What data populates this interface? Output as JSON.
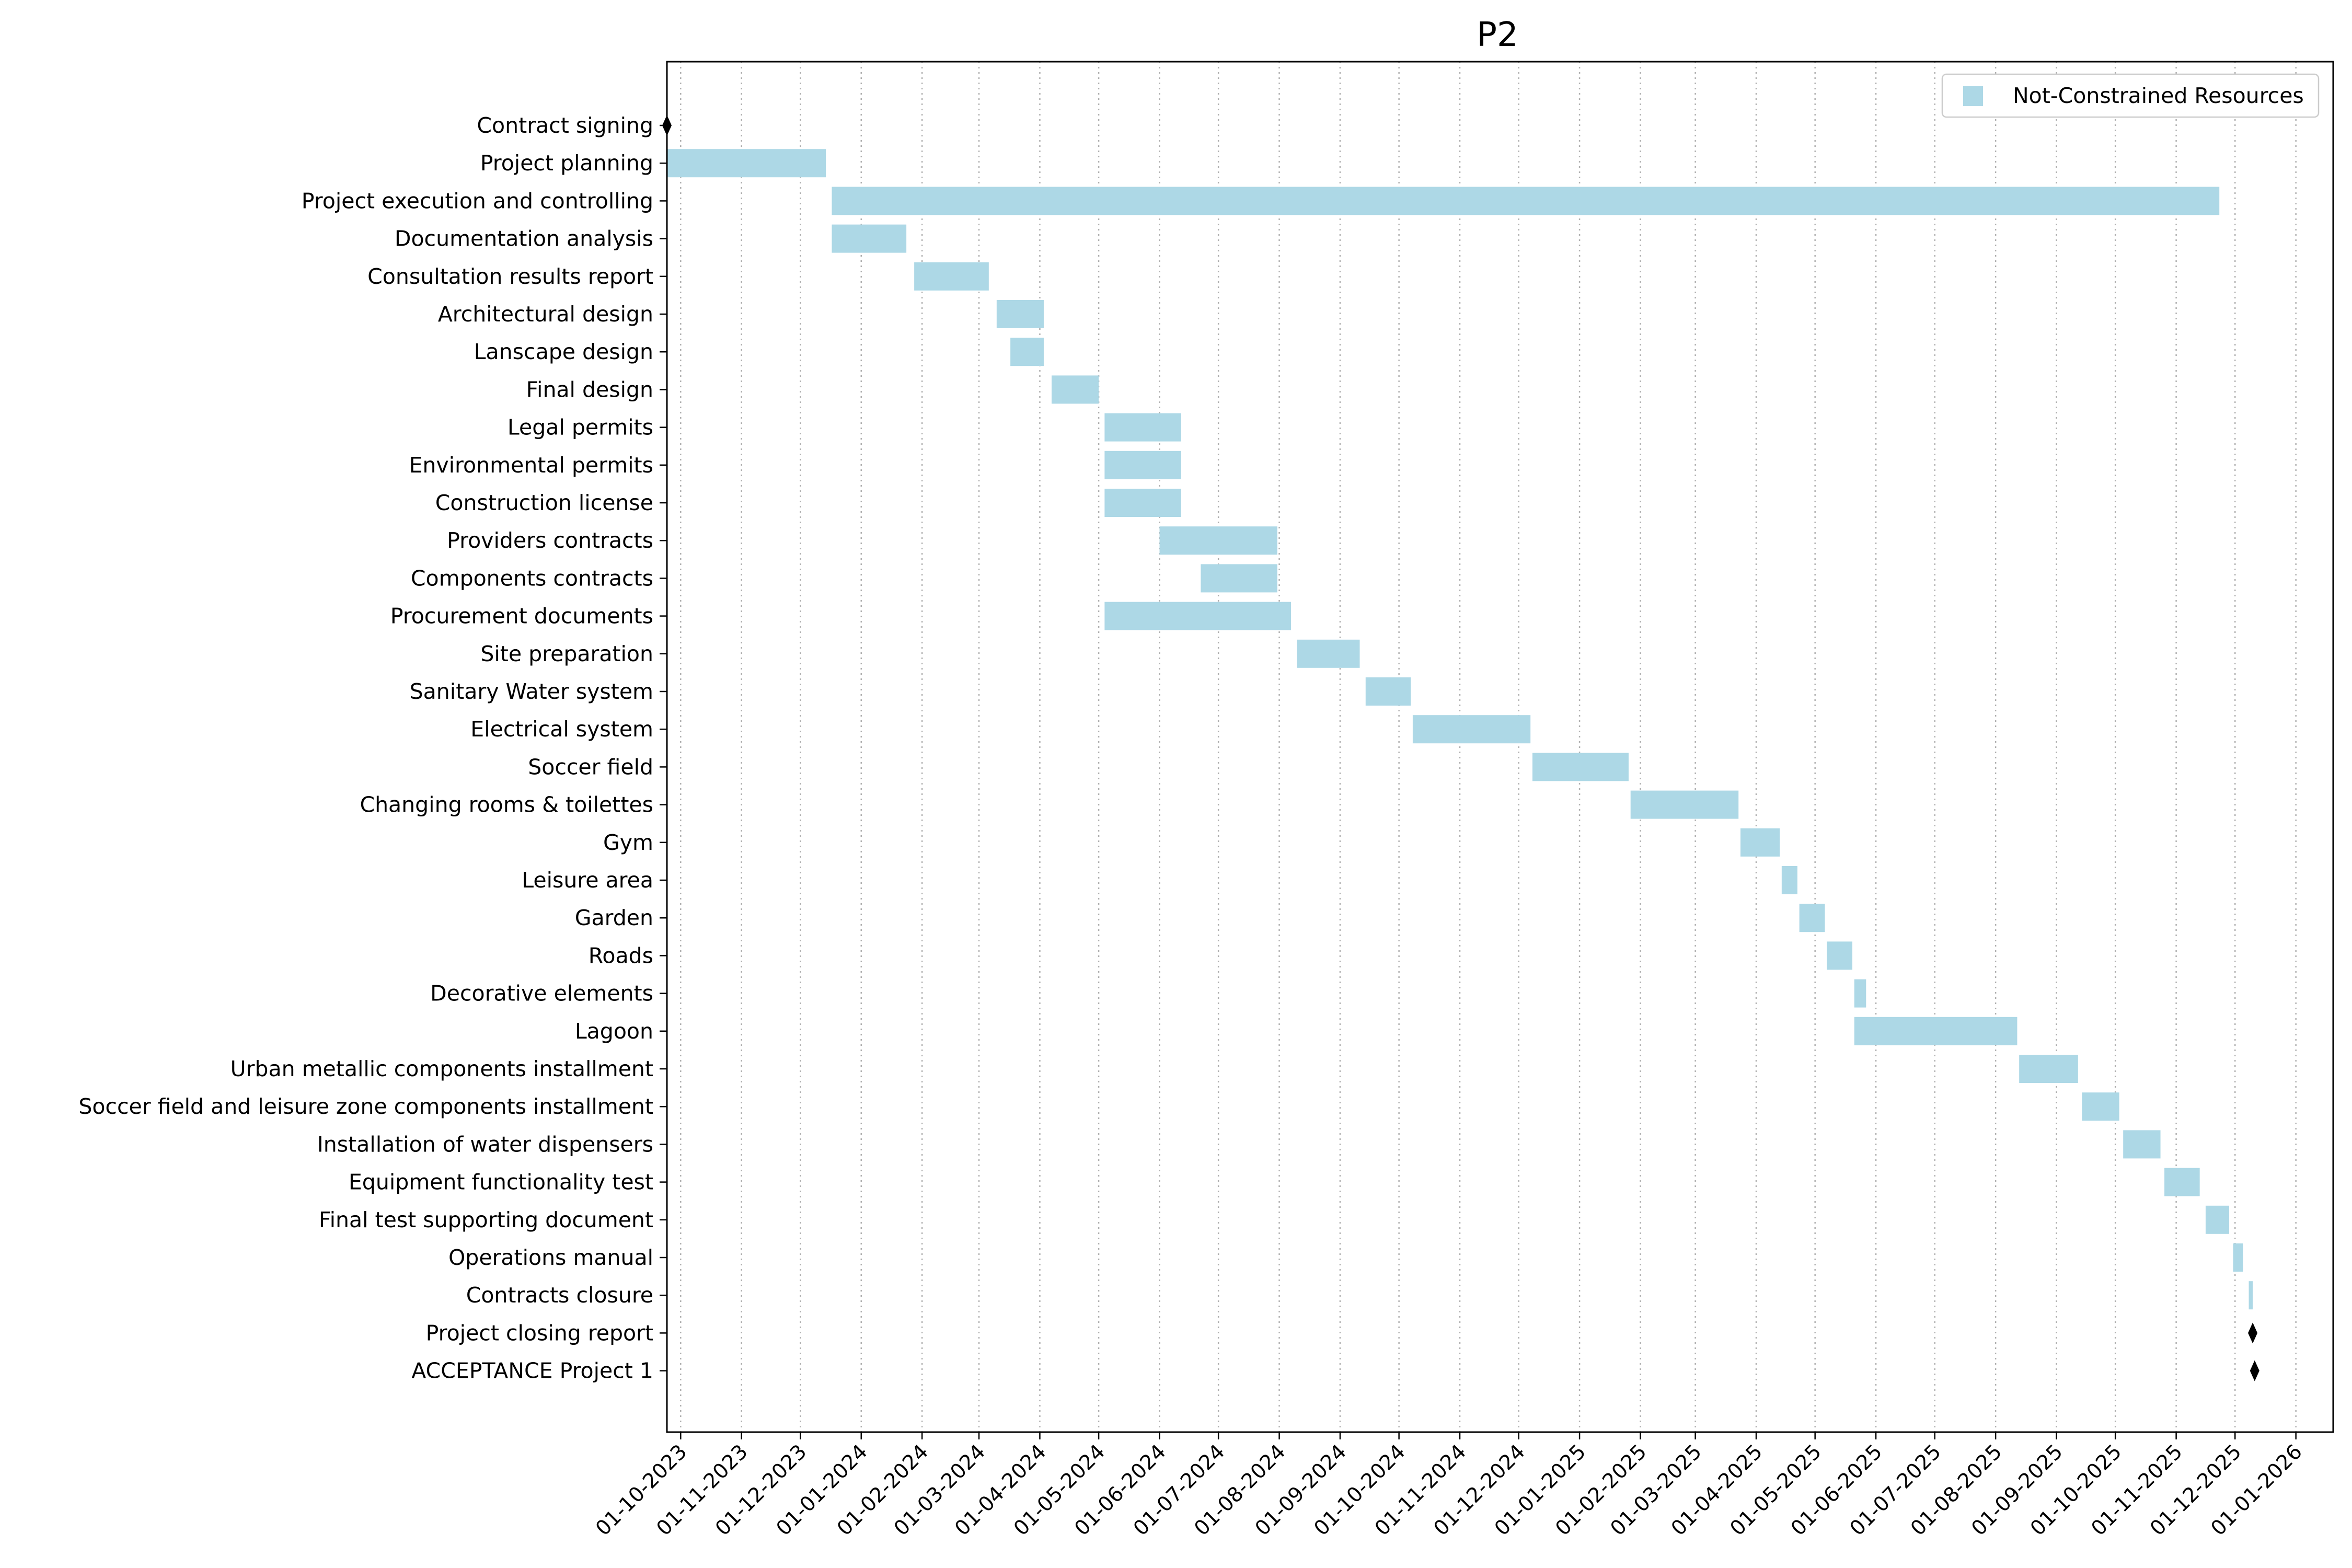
{
  "chart_data": {
    "type": "gantt",
    "title": "P2",
    "xlabel": "",
    "ylabel": "",
    "x_type": "date",
    "xlim": [
      "2023-09-24",
      "2026-01-20"
    ],
    "grid": {
      "x": true,
      "y": false,
      "style": "dotted"
    },
    "legend": {
      "position": "top-right",
      "entries": [
        "Not-Constrained Resources"
      ]
    },
    "colors": {
      "bar": "#add8e6",
      "milestone": "#000000",
      "grid": "#b0b0b0"
    },
    "x_ticks": [
      "2023-10-01",
      "2023-11-01",
      "2023-12-01",
      "2024-01-01",
      "2024-02-01",
      "2024-03-01",
      "2024-04-01",
      "2024-05-01",
      "2024-06-01",
      "2024-07-01",
      "2024-08-01",
      "2024-09-01",
      "2024-10-01",
      "2024-11-01",
      "2024-12-01",
      "2025-01-01",
      "2025-02-01",
      "2025-03-01",
      "2025-04-01",
      "2025-05-01",
      "2025-06-01",
      "2025-07-01",
      "2025-08-01",
      "2025-09-01",
      "2025-10-01",
      "2025-11-01",
      "2025-12-01",
      "2026-01-01"
    ],
    "x_tick_labels": [
      "01-10-2023",
      "01-11-2023",
      "01-12-2023",
      "01-01-2024",
      "01-02-2024",
      "01-03-2024",
      "01-04-2024",
      "01-05-2024",
      "01-06-2024",
      "01-07-2024",
      "01-08-2024",
      "01-09-2024",
      "01-10-2024",
      "01-11-2024",
      "01-12-2024",
      "01-01-2025",
      "01-02-2025",
      "01-03-2025",
      "01-04-2025",
      "01-05-2025",
      "01-06-2025",
      "01-07-2025",
      "01-08-2025",
      "01-09-2025",
      "01-10-2025",
      "01-11-2025",
      "01-12-2025",
      "01-01-2026"
    ],
    "tasks": [
      {
        "name": "Contract signing",
        "start": "2023-09-24",
        "end": "2023-09-24",
        "type": "milestone"
      },
      {
        "name": "Project planning",
        "start": "2023-09-24",
        "end": "2023-12-14",
        "type": "task"
      },
      {
        "name": "Project execution and controlling",
        "start": "2023-12-17",
        "end": "2025-11-23",
        "type": "task"
      },
      {
        "name": "Documentation analysis",
        "start": "2023-12-17",
        "end": "2024-01-24",
        "type": "task"
      },
      {
        "name": "Consultation results report",
        "start": "2024-01-28",
        "end": "2024-03-06",
        "type": "task"
      },
      {
        "name": "Architectural design",
        "start": "2024-03-10",
        "end": "2024-04-03",
        "type": "task"
      },
      {
        "name": "Lanscape design",
        "start": "2024-03-17",
        "end": "2024-04-03",
        "type": "task"
      },
      {
        "name": "Final design",
        "start": "2024-04-07",
        "end": "2024-05-01",
        "type": "task"
      },
      {
        "name": "Legal permits",
        "start": "2024-05-04",
        "end": "2024-06-12",
        "type": "task"
      },
      {
        "name": "Environmental permits",
        "start": "2024-05-04",
        "end": "2024-06-12",
        "type": "task"
      },
      {
        "name": "Construction license",
        "start": "2024-05-04",
        "end": "2024-06-12",
        "type": "task"
      },
      {
        "name": "Providers contracts",
        "start": "2024-06-01",
        "end": "2024-07-31",
        "type": "task"
      },
      {
        "name": "Components contracts",
        "start": "2024-06-22",
        "end": "2024-07-31",
        "type": "task"
      },
      {
        "name": "Procurement documents",
        "start": "2024-05-04",
        "end": "2024-08-07",
        "type": "task"
      },
      {
        "name": "Site preparation",
        "start": "2024-08-10",
        "end": "2024-09-11",
        "type": "task"
      },
      {
        "name": "Sanitary Water system",
        "start": "2024-09-14",
        "end": "2024-10-07",
        "type": "task"
      },
      {
        "name": "Electrical system",
        "start": "2024-10-08",
        "end": "2024-12-07",
        "type": "task"
      },
      {
        "name": "Soccer field",
        "start": "2024-12-08",
        "end": "2025-01-26",
        "type": "task"
      },
      {
        "name": "Changing rooms & toilettes",
        "start": "2025-01-27",
        "end": "2025-03-23",
        "type": "task"
      },
      {
        "name": "Gym",
        "start": "2025-03-24",
        "end": "2025-04-13",
        "type": "task"
      },
      {
        "name": "Leisure area",
        "start": "2025-04-14",
        "end": "2025-04-22",
        "type": "task"
      },
      {
        "name": "Garden",
        "start": "2025-04-23",
        "end": "2025-05-06",
        "type": "task"
      },
      {
        "name": "Roads",
        "start": "2025-05-07",
        "end": "2025-05-20",
        "type": "task"
      },
      {
        "name": "Decorative elements",
        "start": "2025-05-21",
        "end": "2025-05-27",
        "type": "task"
      },
      {
        "name": "Lagoon",
        "start": "2025-05-21",
        "end": "2025-08-12",
        "type": "task"
      },
      {
        "name": "Urban metallic components installment",
        "start": "2025-08-13",
        "end": "2025-09-12",
        "type": "task"
      },
      {
        "name": "Soccer field and leisure zone components installment",
        "start": "2025-09-14",
        "end": "2025-10-03",
        "type": "task"
      },
      {
        "name": "Installation of water dispensers",
        "start": "2025-10-05",
        "end": "2025-10-24",
        "type": "task"
      },
      {
        "name": "Equipment functionality test",
        "start": "2025-10-26",
        "end": "2025-11-13",
        "type": "task"
      },
      {
        "name": "Final test supporting document",
        "start": "2025-11-16",
        "end": "2025-11-28",
        "type": "task"
      },
      {
        "name": "Operations manual",
        "start": "2025-11-30",
        "end": "2025-12-05",
        "type": "task"
      },
      {
        "name": "Contracts closure",
        "start": "2025-12-08",
        "end": "2025-12-10",
        "type": "task"
      },
      {
        "name": "Project closing report",
        "start": "2025-12-10",
        "end": "2025-12-10",
        "type": "milestone"
      },
      {
        "name": "ACCEPTANCE Project 1",
        "start": "2025-12-11",
        "end": "2025-12-11",
        "type": "milestone"
      }
    ]
  }
}
